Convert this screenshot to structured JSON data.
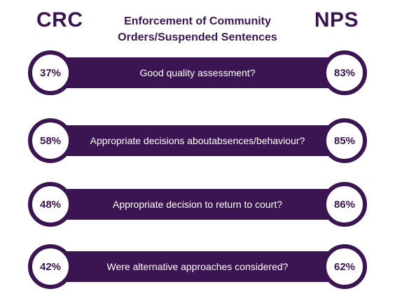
{
  "header": {
    "left_label": "CRC",
    "right_label": "NPS",
    "title_line1": "Enforcement of Community",
    "title_line2": "Orders/Suspended Sentences"
  },
  "colors": {
    "primary": "#3b1552",
    "text_on_primary": "#ffffff",
    "background": "#ffffff"
  },
  "chart_data": {
    "type": "table",
    "series_labels": [
      "CRC",
      "NPS"
    ],
    "rows": [
      {
        "question_lines": [
          "Good quality assessment?"
        ],
        "crc": "37%",
        "nps": "83%"
      },
      {
        "question_lines": [
          "Appropriate decisions about",
          "absences/behaviour?"
        ],
        "crc": "58%",
        "nps": "85%"
      },
      {
        "question_lines": [
          "Appropriate decision to return to court?"
        ],
        "crc": "48%",
        "nps": "86%"
      },
      {
        "question_lines": [
          "Were alternative approaches considered?"
        ],
        "crc": "42%",
        "nps": "62%"
      }
    ]
  }
}
